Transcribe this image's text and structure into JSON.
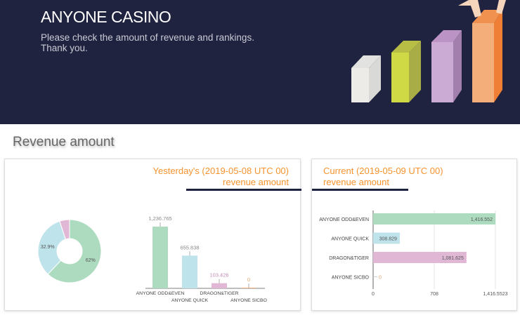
{
  "header": {
    "title": "ANYONE CASINO",
    "subtitle_line1": "Please check the amount of revenue and rankings.",
    "subtitle_line2": "Thank you."
  },
  "section_title": "Revenue amount",
  "yesterday": {
    "title_line1": "Yesterday's (2019-05-08 UTC 00)",
    "title_line2": "revenue amount"
  },
  "current": {
    "title_line1": "Current (2019-05-09 UTC 00)",
    "title_line2": "revenue amount"
  },
  "colors": {
    "odd_even": "#addbbf",
    "quick": "#bfe3ea",
    "dragon": "#e1b7d6",
    "sicbo": "#f0b27a",
    "accent": "#f7932e",
    "navy": "#20233f"
  },
  "chart_data": [
    {
      "type": "pie",
      "donut": true,
      "categories": [
        "ANYONE ODD&EVEN",
        "ANYONE QUICK",
        "DRAGON&TIGER"
      ],
      "values": [
        62,
        32.9,
        5.1
      ],
      "labels": [
        "62%",
        "32.9%",
        ""
      ]
    },
    {
      "type": "bar",
      "categories": [
        "ANYONE ODD&EVEN",
        "ANYONE QUICK",
        "DRAGON&TIGER",
        "ANYONE SICBO"
      ],
      "values": [
        1236.765,
        655.838,
        103.426,
        0
      ],
      "value_labels": [
        "1,236.765",
        "655.838",
        "103.426",
        "0"
      ]
    },
    {
      "type": "bar",
      "orientation": "horizontal",
      "categories": [
        "ANYONE ODD&EVEN",
        "ANYONE QUICK",
        "DRAGON&TIGER",
        "ANYONE SICBO"
      ],
      "values": [
        1416.552,
        308.829,
        1081.625,
        0
      ],
      "value_labels": [
        "1,416.552",
        "308.829",
        "1,081.625",
        "0"
      ],
      "xlim": [
        0,
        1416.5523
      ],
      "x_ticks": [
        "0",
        "708",
        "1,416.5523"
      ],
      "grid": true
    }
  ]
}
